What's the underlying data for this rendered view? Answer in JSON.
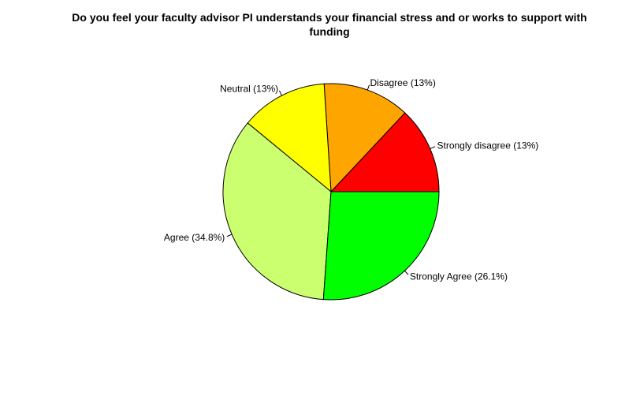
{
  "chart_data": {
    "type": "pie",
    "title_lines": [
      "Do you feel your faculty advisor PI understands your financial stress and or works to support with",
      "funding"
    ],
    "clockwise": false,
    "start_angle_deg": 0,
    "slices": [
      {
        "label": "Strongly disagree (13%)",
        "category": "Strongly disagree",
        "value": 13.0,
        "color": "#FF0000"
      },
      {
        "label": "Disagree (13%)",
        "category": "Disagree",
        "value": 13.0,
        "color": "#FFA500"
      },
      {
        "label": "Neutral (13%)",
        "category": "Neutral",
        "value": 13.0,
        "color": "#FFFF00"
      },
      {
        "label": "Agree (34.8%)",
        "category": "Agree",
        "value": 34.8,
        "color": "#CCFF70"
      },
      {
        "label": "Strongly Agree (26.1%)",
        "category": "Strongly Agree",
        "value": 26.1,
        "color": "#00FF00"
      }
    ]
  }
}
